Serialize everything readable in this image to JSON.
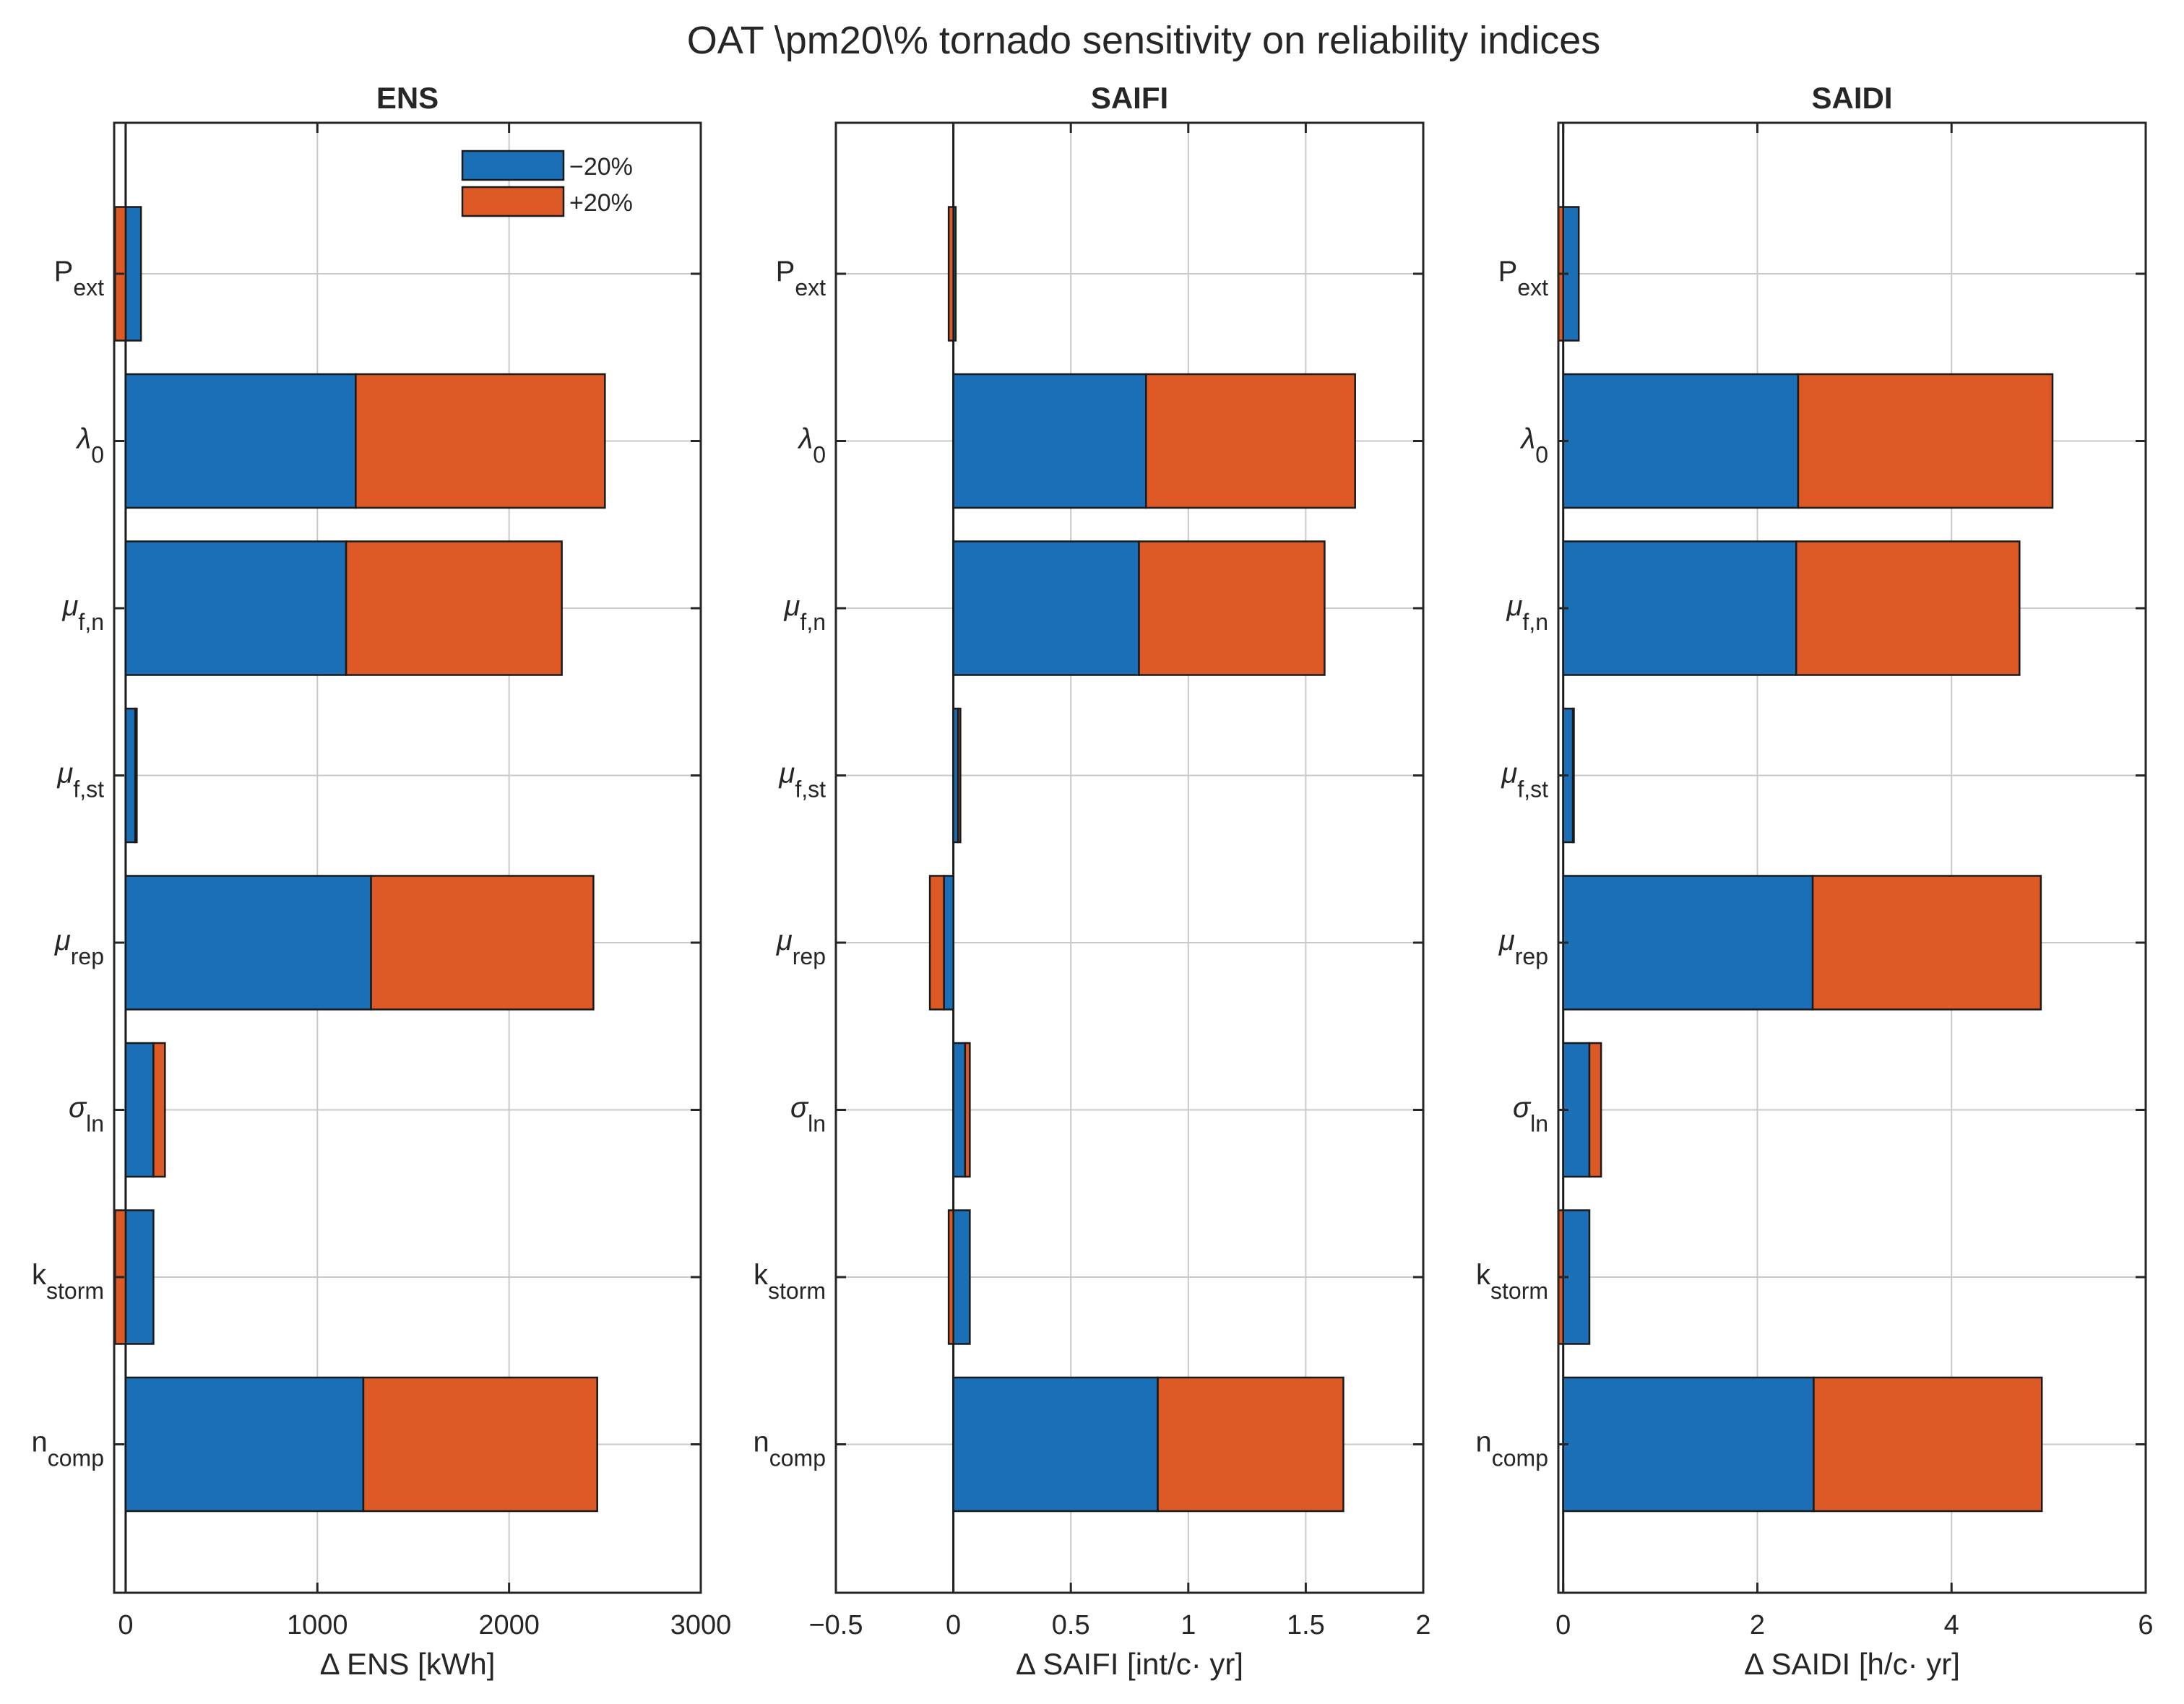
{
  "figure": {
    "title": "OAT \\pm20\\% tornado sensitivity on reliability indices"
  },
  "legend": {
    "entries": [
      {
        "label": "−20%",
        "color": "#1a6fb6"
      },
      {
        "label": "+20%",
        "color": "#dd5a26"
      }
    ],
    "placement": "top-right of ENS panel"
  },
  "parameters": [
    {
      "base": "P",
      "sub": "ext",
      "greek": false
    },
    {
      "base": "λ",
      "sub": "0",
      "greek": true
    },
    {
      "base": "μ",
      "sub": "f,n",
      "greek": true
    },
    {
      "base": "μ",
      "sub": "f,st",
      "greek": true
    },
    {
      "base": "μ",
      "sub": "rep",
      "greek": true
    },
    {
      "base": "σ",
      "sub": "ln",
      "greek": true
    },
    {
      "base": "k",
      "sub": "storm",
      "greek": false
    },
    {
      "base": "n",
      "sub": "comp",
      "greek": false
    }
  ],
  "chart_data": [
    {
      "type": "bar",
      "orientation": "horizontal",
      "stacked": true,
      "title": "ENS",
      "xlabel": "Δ ENS [kWh]",
      "xlim": [
        -60,
        3000
      ],
      "xticks": [
        0,
        1000,
        2000,
        3000
      ],
      "xtick_labels": [
        "0",
        "1000",
        "2000",
        "3000"
      ],
      "grid": true,
      "series": [
        {
          "name": "−20%",
          "color": "#1a6fb6",
          "values": [
            80,
            1200,
            1150,
            50,
            1280,
            145,
            145,
            1240
          ]
        },
        {
          "name": "+20%",
          "color": "#dd5a26",
          "values": [
            -55,
            1300,
            1125,
            8,
            1160,
            60,
            -55,
            1220
          ]
        }
      ]
    },
    {
      "type": "bar",
      "orientation": "horizontal",
      "stacked": true,
      "title": "SAIFI",
      "xlabel": "Δ SAIFI [int/c· yr]",
      "xlim": [
        -0.5,
        2
      ],
      "xticks": [
        -0.5,
        0,
        0.5,
        1,
        1.5,
        2
      ],
      "xtick_labels": [
        "−0.5",
        "0",
        "0.5",
        "1",
        "1.5",
        "2"
      ],
      "grid": true,
      "series": [
        {
          "name": "−20%",
          "color": "#1a6fb6",
          "values": [
            0.01,
            0.82,
            0.79,
            0.02,
            -0.04,
            0.05,
            0.07,
            0.87
          ]
        },
        {
          "name": "+20%",
          "color": "#dd5a26",
          "values": [
            -0.02,
            0.89,
            0.79,
            0.01,
            -0.06,
            0.02,
            -0.02,
            0.79
          ]
        }
      ]
    },
    {
      "type": "bar",
      "orientation": "horizontal",
      "stacked": true,
      "title": "SAIDI",
      "xlabel": "Δ SAIDI [h/c· yr]",
      "xlim": [
        -0.05,
        6
      ],
      "xticks": [
        0,
        2,
        4,
        6
      ],
      "xtick_labels": [
        "0",
        "2",
        "4",
        "6"
      ],
      "grid": true,
      "series": [
        {
          "name": "−20%",
          "color": "#1a6fb6",
          "values": [
            0.16,
            2.42,
            2.4,
            0.1,
            2.57,
            0.27,
            0.27,
            2.58
          ]
        },
        {
          "name": "+20%",
          "color": "#dd5a26",
          "values": [
            -0.05,
            2.62,
            2.3,
            0.01,
            2.35,
            0.12,
            -0.05,
            2.35
          ]
        }
      ]
    }
  ]
}
